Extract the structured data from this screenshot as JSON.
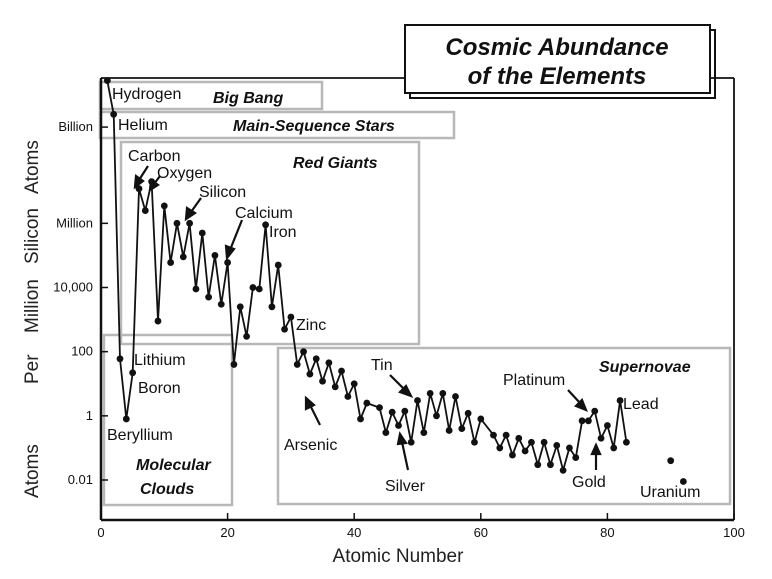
{
  "chart_data": {
    "type": "line",
    "title": "Cosmic Abundance of the Elements",
    "title_lines": [
      "Cosmic Abundance",
      "of the Elements"
    ],
    "xlabel": "Atomic Number",
    "ylabel_words": [
      "Atoms",
      "Per",
      "Million",
      "Silicon",
      "Atoms"
    ],
    "xlim": [
      0,
      100
    ],
    "ylim": [
      0.001,
      100000000000
    ],
    "yscale": "log",
    "x_ticks": [
      0,
      20,
      40,
      60,
      80,
      100
    ],
    "y_ticks": [
      {
        "value": 0.01,
        "label": "0.01"
      },
      {
        "value": 1,
        "label": "1"
      },
      {
        "value": 100,
        "label": "100"
      },
      {
        "value": 10000,
        "label": "10,000"
      },
      {
        "value": 1000000,
        "label": "Million"
      },
      {
        "value": 1000000000,
        "label": "Billion"
      }
    ],
    "series": [
      {
        "x": [
          1,
          2,
          3,
          4,
          5,
          6,
          7,
          8,
          9,
          10,
          11,
          12,
          13,
          14,
          15,
          16,
          17,
          18,
          19,
          20,
          21,
          22,
          23,
          24,
          25,
          26,
          27,
          28,
          29,
          30,
          31,
          32,
          33,
          34,
          35,
          36,
          37,
          38,
          39,
          40,
          41,
          42,
          44,
          45,
          46,
          47,
          48,
          49,
          50,
          51,
          52,
          53,
          54,
          55,
          56,
          57,
          58,
          59,
          60,
          62,
          63,
          64,
          65,
          66,
          67,
          68,
          69,
          70,
          71,
          72,
          73,
          74,
          75,
          76,
          77,
          78,
          79,
          80,
          81,
          82,
          83
        ],
        "y": [
          28000000000,
          2500000000,
          60,
          0.8,
          22,
          12000000,
          2500000,
          20000000,
          900,
          3500000,
          60000,
          1000000,
          90000,
          1000000,
          9000,
          500000,
          5000,
          100000,
          3000,
          60000,
          40,
          2500,
          300,
          10000,
          9000,
          900000,
          2500,
          50000,
          500,
          1200,
          40,
          100,
          20,
          60,
          12,
          45,
          8,
          25,
          4,
          10,
          0.8,
          2.5,
          1.8,
          0.3,
          1.3,
          0.5,
          1.4,
          0.15,
          3,
          0.3,
          5,
          1,
          5,
          0.35,
          4,
          0.4,
          1.2,
          0.15,
          0.8,
          0.25,
          0.1,
          0.25,
          0.06,
          0.2,
          0.08,
          0.15,
          0.03,
          0.15,
          0.03,
          0.12,
          0.02,
          0.1,
          0.05,
          0.7,
          0.7,
          1.4,
          0.2,
          0.5,
          0.1,
          3,
          0.15
        ]
      },
      {
        "x": [
          90,
          92
        ],
        "y": [
          0.04,
          0.009
        ]
      }
    ],
    "annotations": [
      {
        "text": "Hydrogen"
      },
      {
        "text": "Helium"
      },
      {
        "text": "Carbon"
      },
      {
        "text": "Oxygen"
      },
      {
        "text": "Silicon"
      },
      {
        "text": "Calcium"
      },
      {
        "text": "Iron"
      },
      {
        "text": "Zinc"
      },
      {
        "text": "Lithium"
      },
      {
        "text": "Boron"
      },
      {
        "text": "Beryllium"
      },
      {
        "text": "Tin"
      },
      {
        "text": "Arsenic"
      },
      {
        "text": "Silver"
      },
      {
        "text": "Platinum"
      },
      {
        "text": "Lead"
      },
      {
        "text": "Gold"
      },
      {
        "text": "Uranium"
      }
    ],
    "regions": [
      {
        "label": "Big Bang"
      },
      {
        "label": "Main-Sequence Stars"
      },
      {
        "label": "Red Giants"
      },
      {
        "label": "Supernovae"
      },
      {
        "label_lines": [
          "Molecular",
          "Clouds"
        ]
      }
    ],
    "grid": false
  }
}
